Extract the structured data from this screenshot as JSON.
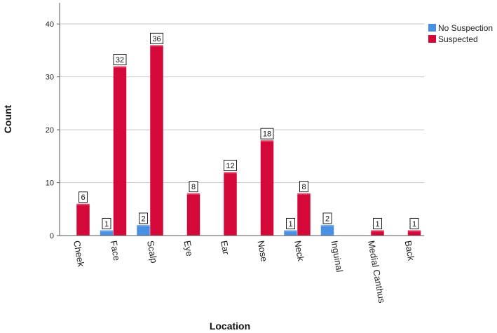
{
  "chart_data": {
    "type": "bar",
    "categories": [
      "Cheek",
      "Face",
      "Scalp",
      "Eye",
      "Ear",
      "Nose",
      "Neck",
      "Inguinal",
      "Medial Canthus",
      "Back"
    ],
    "series": [
      {
        "name": "No Suspection",
        "color": "#4a90e2",
        "values": [
          null,
          1,
          2,
          null,
          null,
          null,
          1,
          2,
          null,
          null
        ]
      },
      {
        "name": "Suspected",
        "color": "#d4093a",
        "values": [
          6,
          32,
          36,
          8,
          12,
          18,
          8,
          null,
          1,
          1
        ]
      }
    ],
    "xlabel": "Location",
    "ylabel": "Count",
    "ylim": [
      0,
      44
    ],
    "yticks": [
      0,
      10,
      20,
      30,
      40
    ],
    "grid": true,
    "legend_position": "top-right",
    "data_labels": true
  }
}
